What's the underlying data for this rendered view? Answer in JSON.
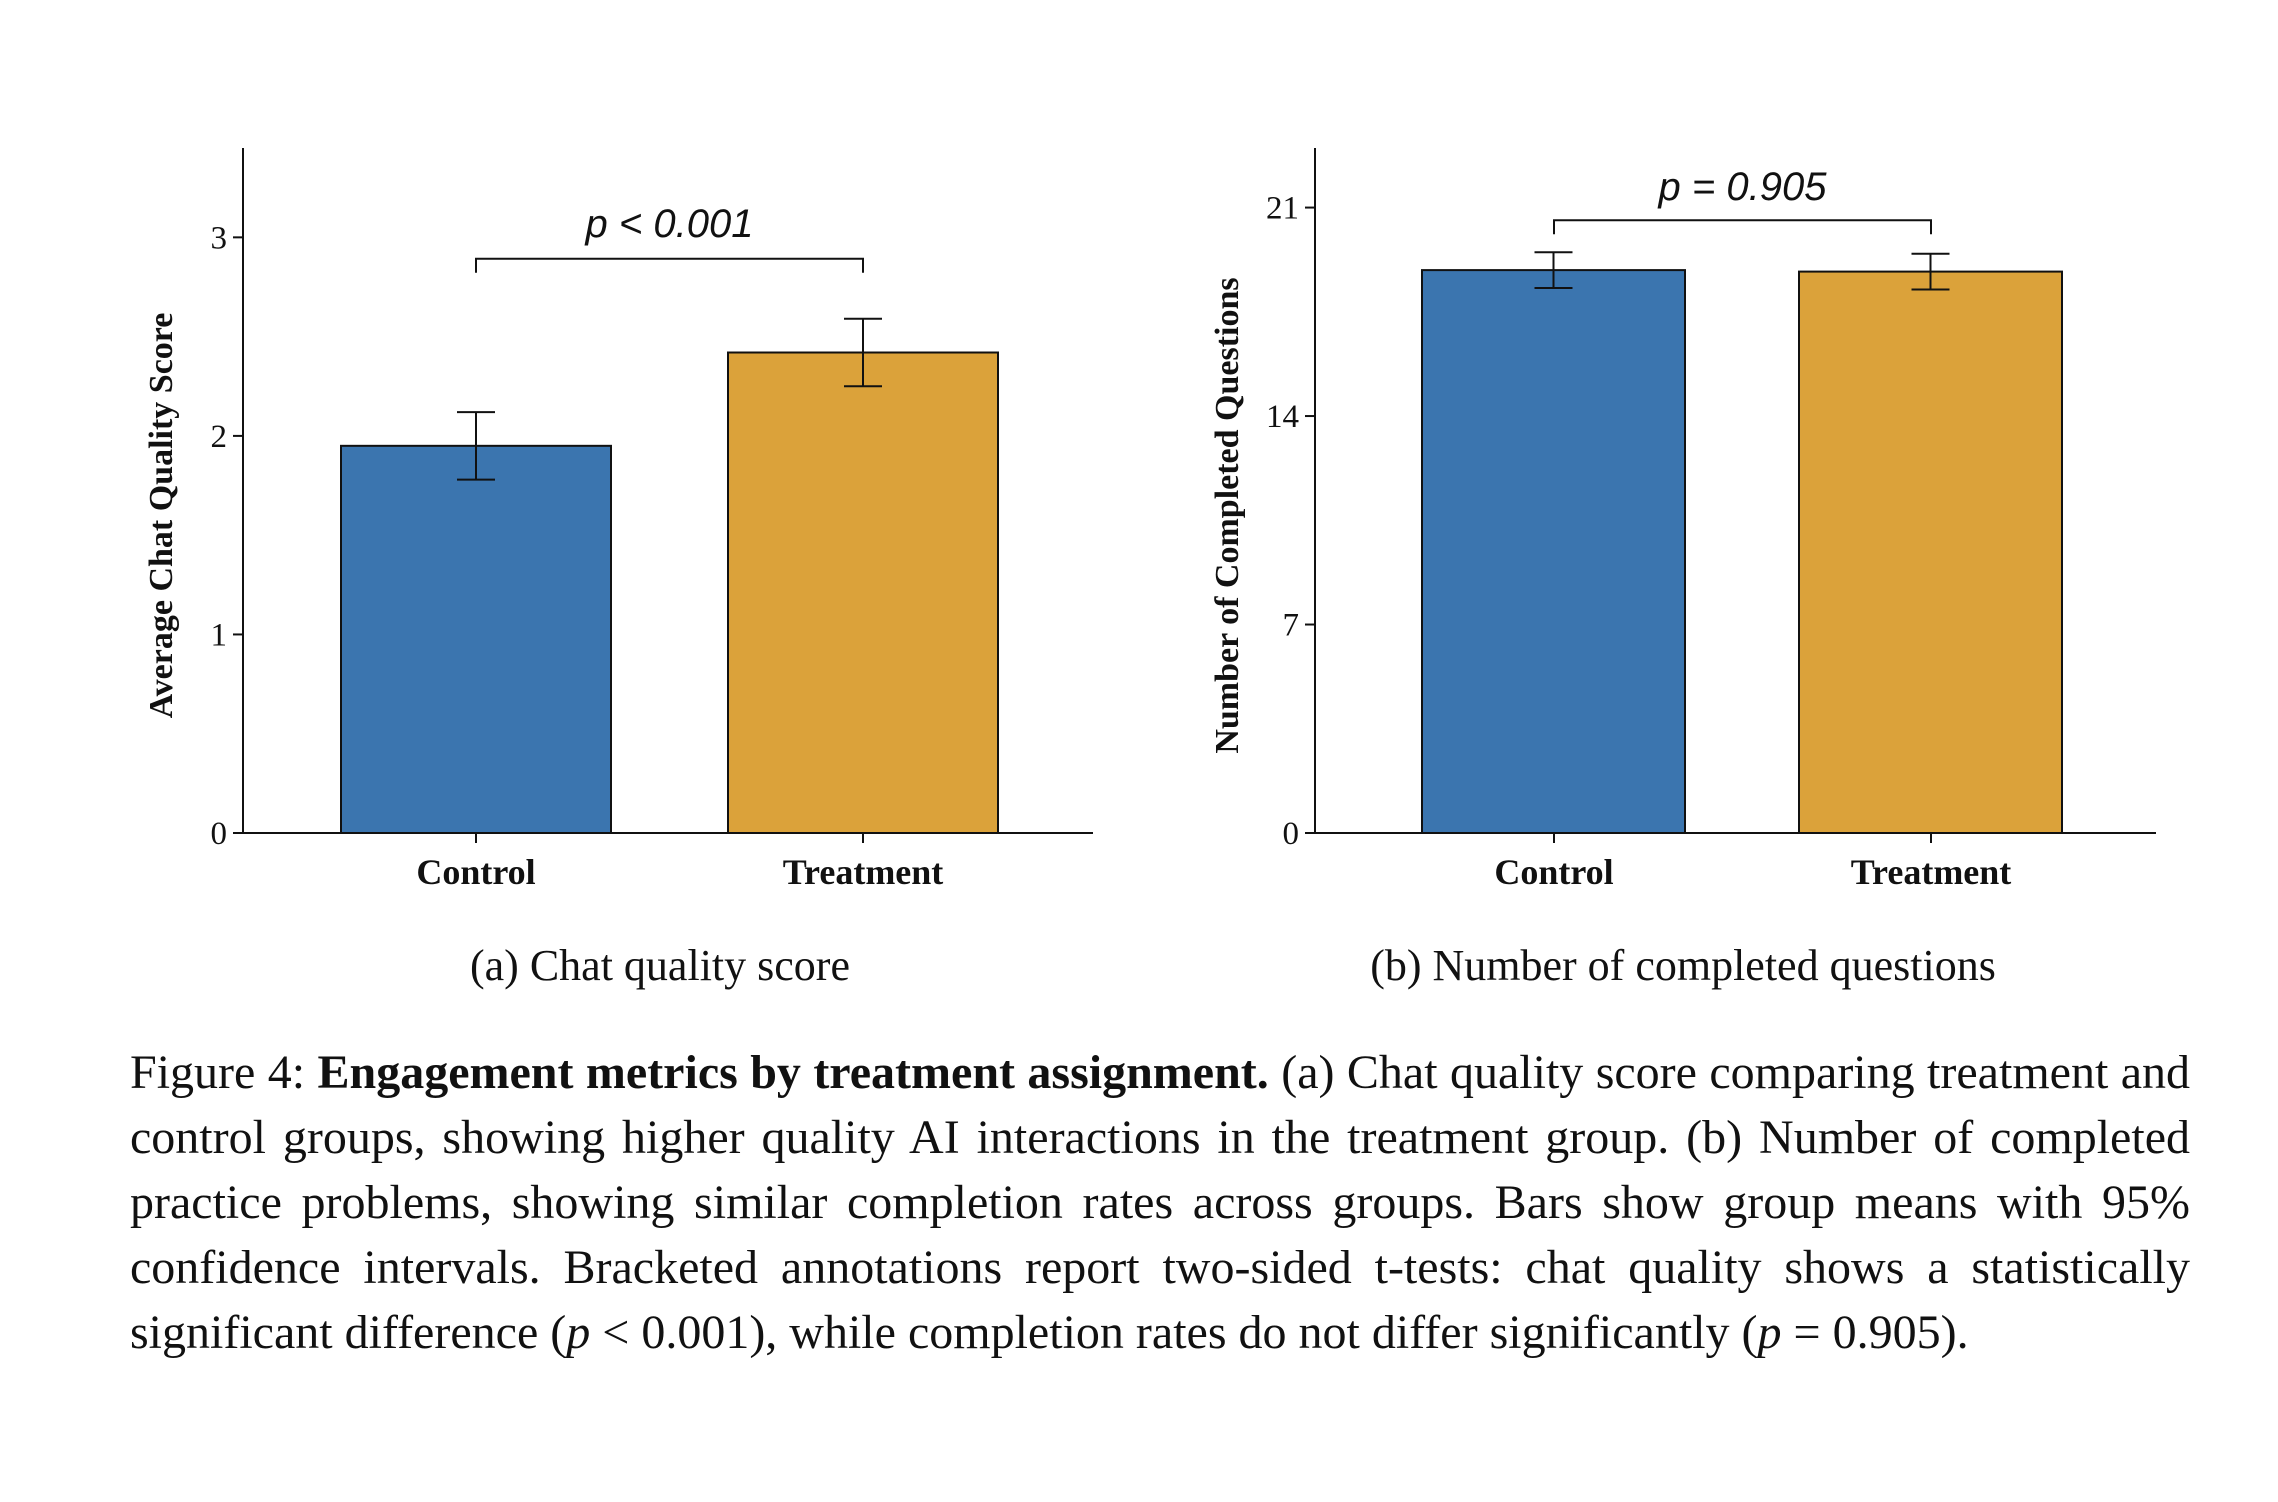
{
  "chart_data": [
    {
      "type": "bar",
      "categories": [
        "Control",
        "Treatment"
      ],
      "values": [
        1.95,
        2.42
      ],
      "ci_low": [
        1.78,
        2.25
      ],
      "ci_high": [
        2.12,
        2.59
      ],
      "ylabel": "Average Chat Quality Score",
      "yticks": [
        0,
        1,
        2,
        3
      ],
      "ylim": [
        0,
        3.45
      ],
      "colors": [
        "#3b75af",
        "#dba23a"
      ],
      "annotation": "p < 0.001",
      "subcaption": "(a) Chat quality score"
    },
    {
      "type": "bar",
      "categories": [
        "Control",
        "Treatment"
      ],
      "values": [
        18.9,
        18.85
      ],
      "ci_low": [
        18.3,
        18.25
      ],
      "ci_high": [
        19.5,
        19.45
      ],
      "ylabel": "Number of Completed Questions",
      "yticks": [
        0,
        7,
        14,
        21
      ],
      "ylim": [
        0,
        23
      ],
      "colors": [
        "#3b75af",
        "#dba23a"
      ],
      "annotation": "p = 0.905",
      "subcaption": "(b) Number of completed questions"
    }
  ],
  "caption": {
    "label": "Figure 4:",
    "bold": "Engagement metrics by treatment assignment.",
    "part1": "(a) Chat quality score comparing treatment and control groups, showing higher quality AI interactions in the treatment group. (b) Number of completed practice problems, showing similar completion rates across groups. Bars show group means with 95% confidence intervals. Bracketed annotations report two-sided t-tests: chat quality shows a statistically significant difference (",
    "p_symbol": "p",
    "part2": " < 0.001), while completion rates do not differ significantly (",
    "part3": " = 0.905)."
  }
}
